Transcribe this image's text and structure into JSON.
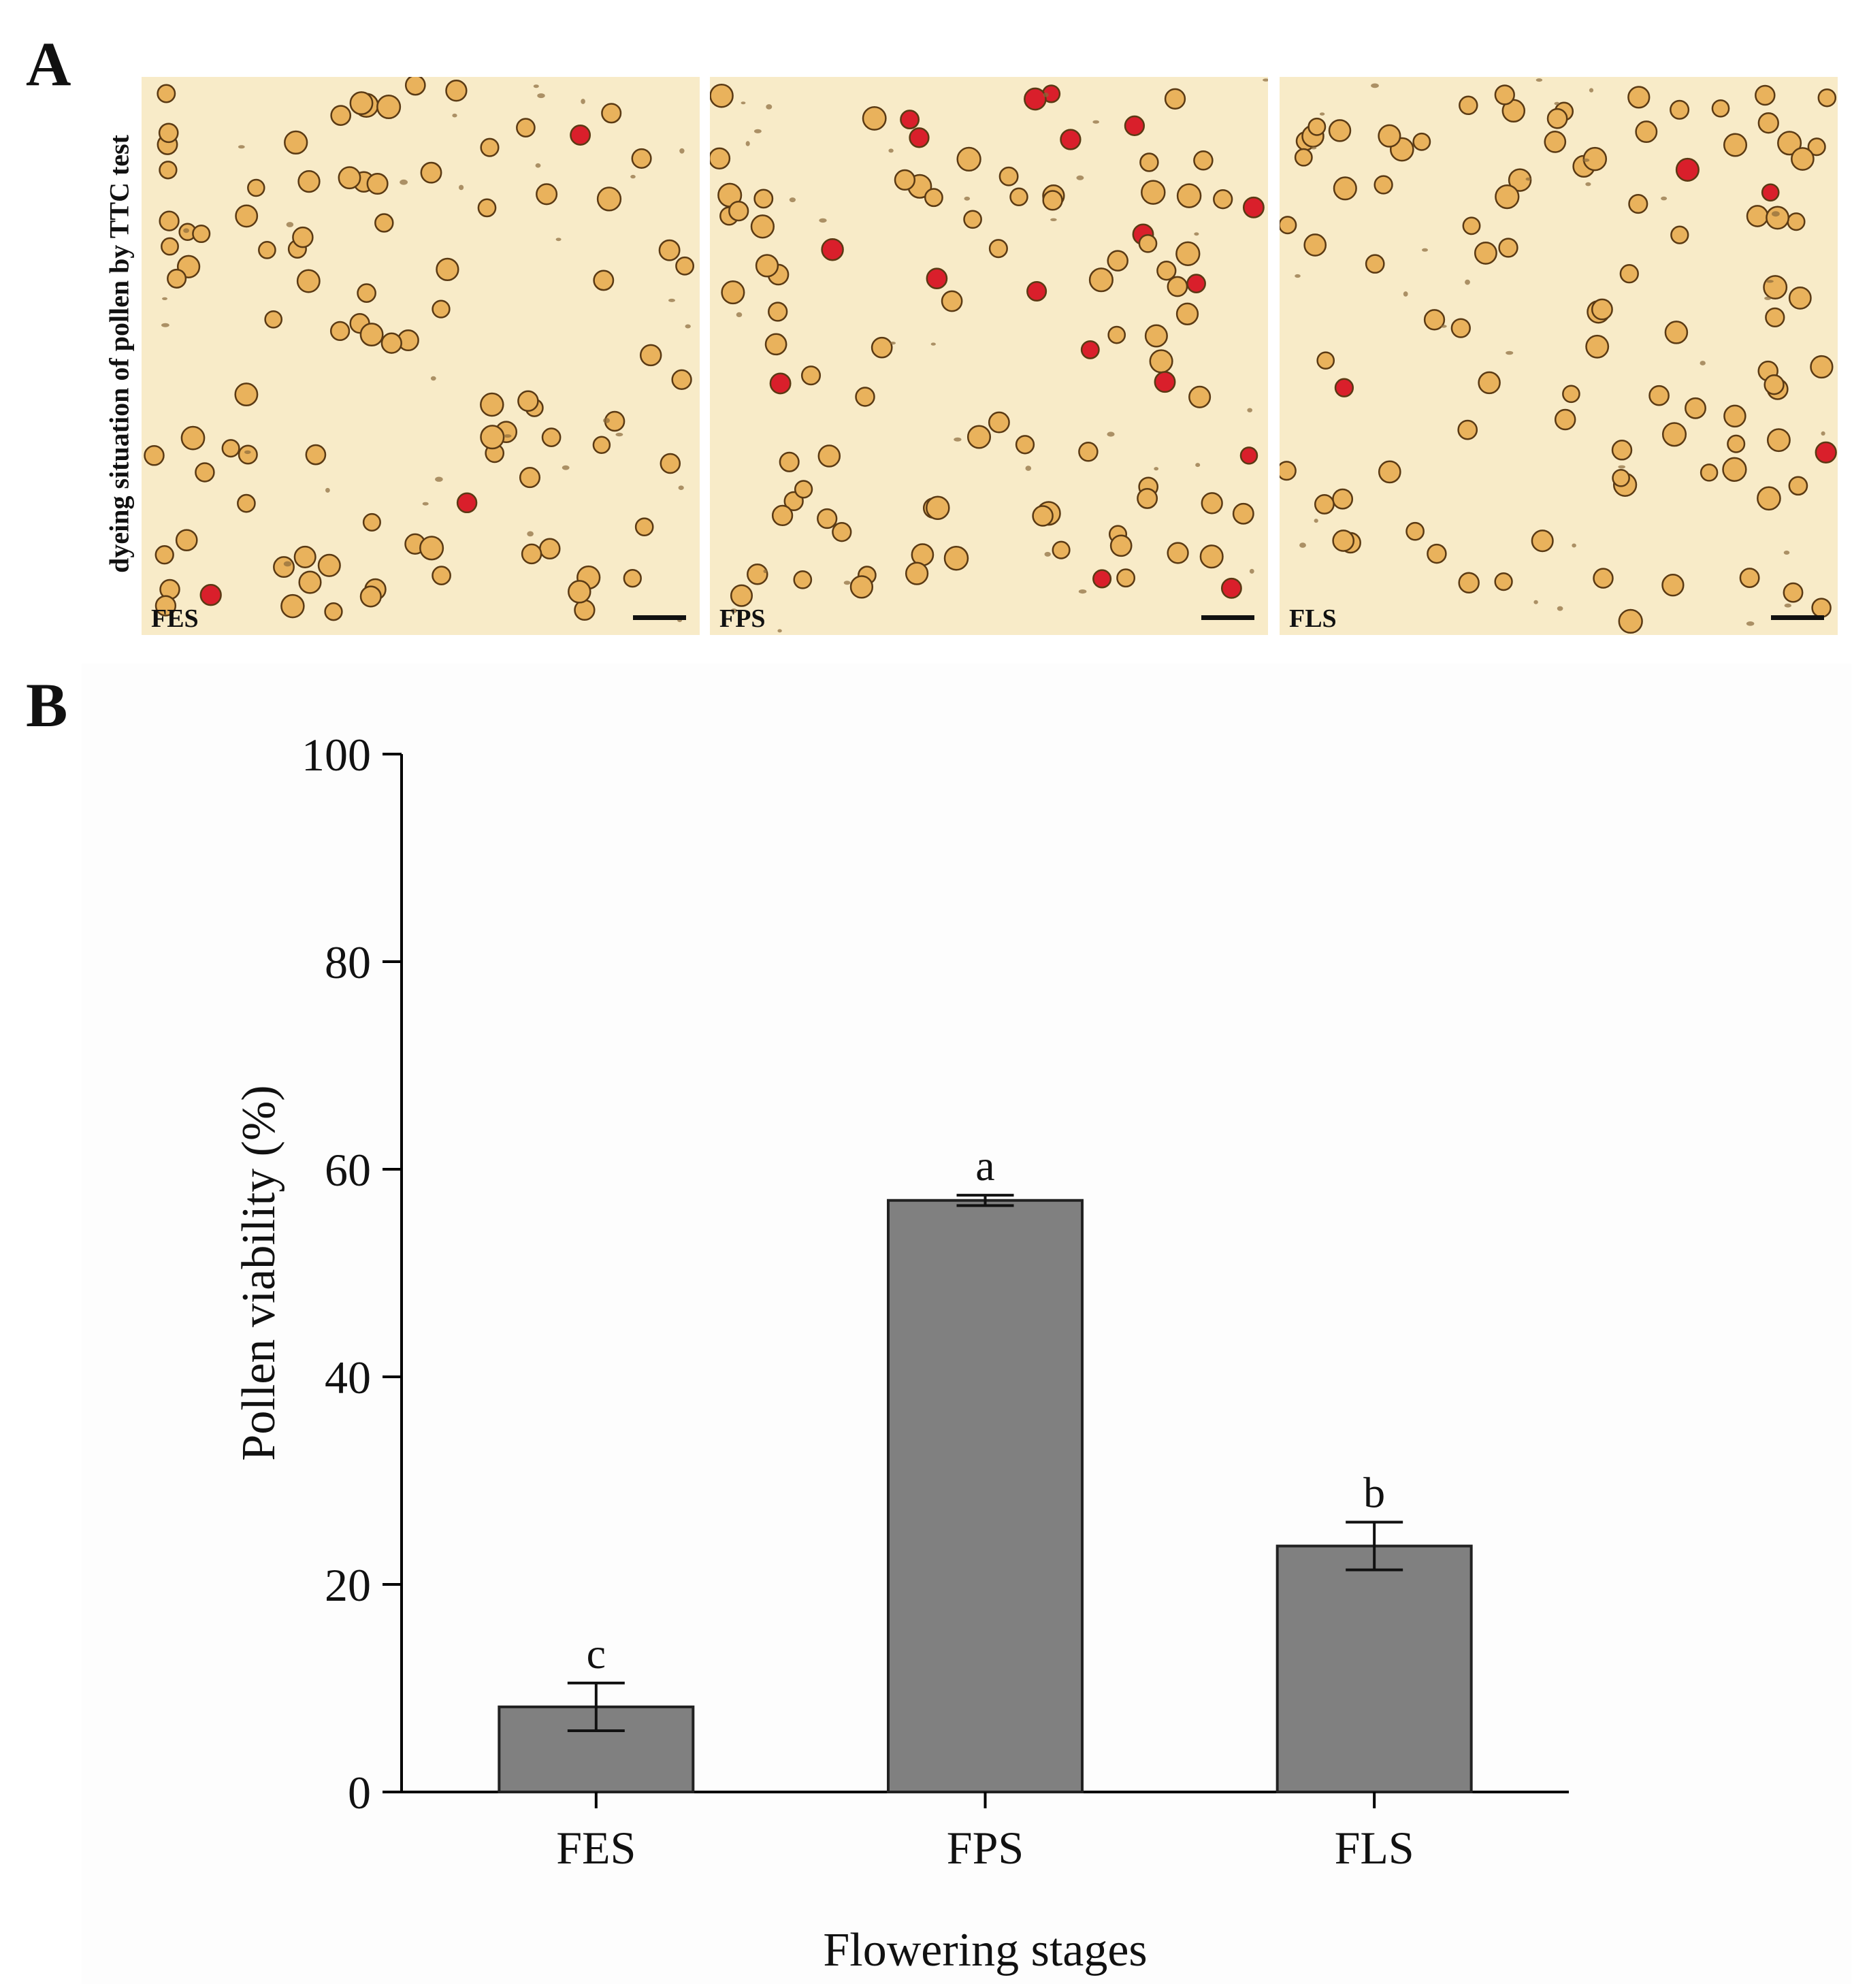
{
  "panels": {
    "a": {
      "letter": "A",
      "ylabel": "dyeing situation of pollen by TTC test",
      "images": [
        {
          "stage": "FES",
          "stained_fraction": 0.04
        },
        {
          "stage": "FPS",
          "stained_fraction": 0.14
        },
        {
          "stage": "FLS",
          "stained_fraction": 0.08
        }
      ]
    },
    "b": {
      "letter": "B"
    }
  },
  "colors": {
    "background": "#f8ebc8",
    "pollen_fill": "#e9b25c",
    "pollen_edge": "#5a3a14",
    "stained_pollen": "#d91f2b",
    "bar_fill": "#808080",
    "bar_edge": "#222222"
  },
  "chart_data": {
    "type": "bar",
    "categories": [
      "FES",
      "FPS",
      "FLS"
    ],
    "values": [
      8.2,
      57.0,
      23.7
    ],
    "error": [
      2.3,
      0.5,
      2.3
    ],
    "significance": [
      "c",
      "a",
      "b"
    ],
    "xlabel": "Flowering stages",
    "ylabel": "Pollen viability (%)",
    "ylim": [
      0,
      100
    ],
    "yticks": [
      0,
      20,
      40,
      60,
      80,
      100
    ],
    "grid": false,
    "legend": "none"
  }
}
